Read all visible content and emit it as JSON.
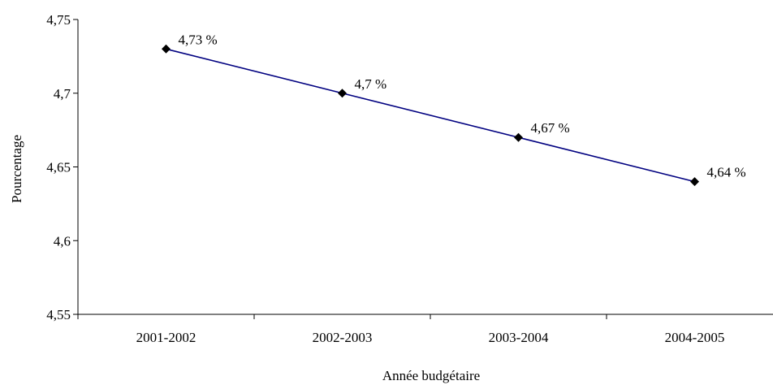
{
  "chart_data": {
    "type": "line",
    "categories": [
      "2001-2002",
      "2002-2003",
      "2003-2004",
      "2004-2005"
    ],
    "series": [
      {
        "values": [
          4.73,
          4.7,
          4.67,
          4.64
        ],
        "data_labels": [
          "4,73 %",
          "4,7 %",
          "4,67 %",
          "4,64 %"
        ]
      }
    ],
    "ylim": [
      4.55,
      4.75
    ],
    "yticks": [
      4.55,
      4.6,
      4.65,
      4.7,
      4.75
    ],
    "ytick_labels": [
      "4,55",
      "4,6",
      "4,65",
      "4,7",
      "4,75"
    ],
    "xlabel": "Année budgétaire",
    "ylabel": "Pourcentage",
    "grid": false,
    "legend": "none",
    "colors": {
      "line": "#000080",
      "marker": "#000000",
      "axis": "#000000"
    },
    "marker": "diamond"
  }
}
